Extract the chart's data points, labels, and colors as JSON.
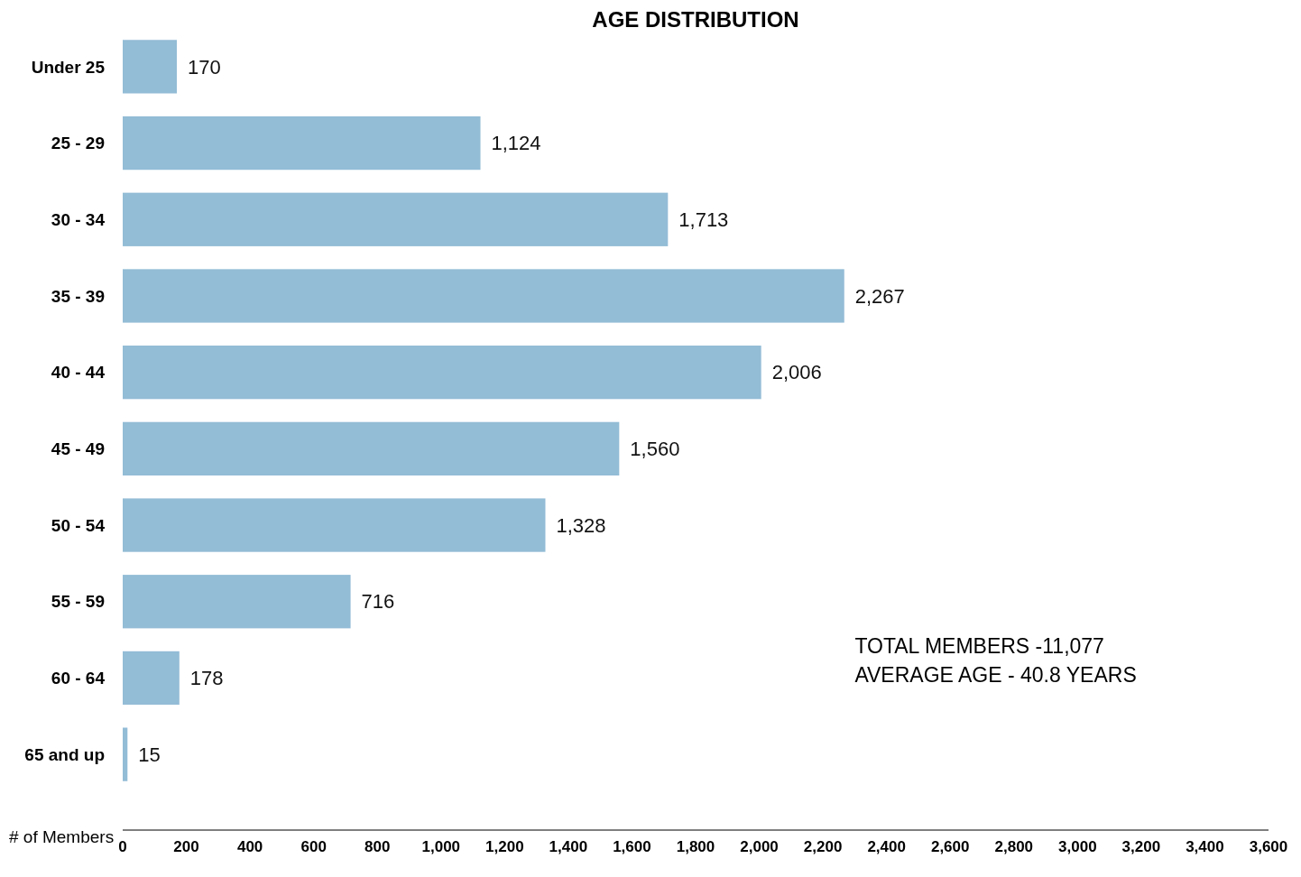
{
  "chart_data": {
    "type": "bar",
    "orientation": "horizontal",
    "title": "AGE DISTRIBUTION",
    "xlabel": "# of Members",
    "categories": [
      "Under 25",
      "25 - 29",
      "30 - 34",
      "35 - 39",
      "40 - 44",
      "45 - 49",
      "50 - 54",
      "55 - 59",
      "60 - 64",
      "65 and up"
    ],
    "values": [
      170,
      1124,
      1713,
      2267,
      2006,
      1560,
      1328,
      716,
      178,
      15
    ],
    "value_labels": [
      "170",
      "1,124",
      "1,713",
      "2,267",
      "2,006",
      "1,560",
      "1,328",
      "716",
      "178",
      "15"
    ],
    "color": "#93bcd6",
    "xlim": [
      0,
      3600
    ],
    "xticks": [
      0,
      200,
      400,
      600,
      800,
      {
        "value": 1000,
        "label": "1,000"
      },
      {
        "value": 1200,
        "label": "1,200"
      },
      {
        "value": 1400,
        "label": "1,400"
      },
      {
        "value": 1600,
        "label": "1,600"
      },
      {
        "value": 1800,
        "label": "1,800"
      },
      {
        "value": 2000,
        "label": "2,000"
      },
      {
        "value": 2200,
        "label": "2,200"
      },
      {
        "value": 2400,
        "label": "2,400"
      },
      {
        "value": 2600,
        "label": "2,600"
      },
      {
        "value": 2800,
        "label": "2,800"
      },
      {
        "value": 3000,
        "label": "3,000"
      },
      {
        "value": 3200,
        "label": "3,200"
      },
      {
        "value": 3400,
        "label": "3,400"
      },
      {
        "value": 3600,
        "label": "3,600"
      }
    ],
    "grid": false,
    "annotations": [
      "TOTAL MEMBERS -11,077",
      "AVERAGE AGE - 40.8 YEARS"
    ]
  }
}
